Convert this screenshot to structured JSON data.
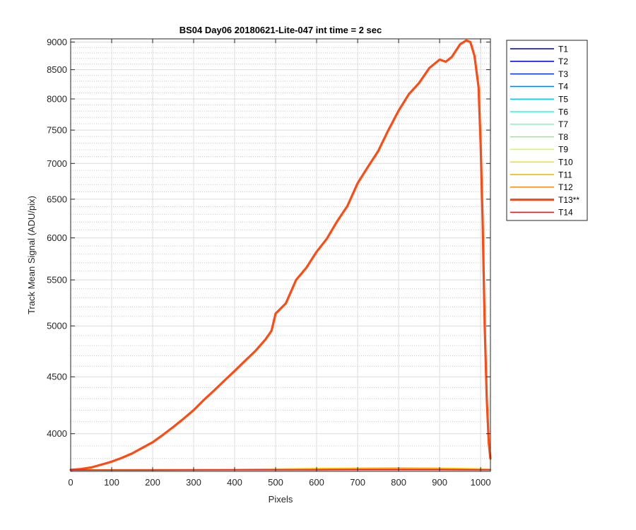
{
  "chart_data": {
    "type": "line",
    "title": "BS04 Day06 20180621-Lite-047 int time = 2 sec",
    "xlabel": "Pixels",
    "ylabel": "Track Mean Signal (ADU/pix)",
    "xlim": [
      0,
      1024
    ],
    "ylim": [
      3700,
      9060
    ],
    "y_scale": "log",
    "grid": true,
    "minor_grid": true,
    "legend_position": "outside-top-right",
    "x_ticks": [
      0,
      100,
      200,
      300,
      400,
      500,
      600,
      700,
      800,
      900,
      1000
    ],
    "x_tick_labels": [
      "0",
      "100",
      "200",
      "300",
      "400",
      "500",
      "600",
      "700",
      "800",
      "900",
      "1000"
    ],
    "y_ticks": [
      4000,
      4500,
      5000,
      5500,
      6000,
      6500,
      7000,
      7500,
      8000,
      8500,
      9000
    ],
    "y_tick_labels": [
      "4000",
      "4500",
      "5000",
      "5500",
      "6000",
      "6500",
      "7000",
      "7500",
      "8000",
      "8500",
      "9000"
    ],
    "y_minor_ticks": [
      3800,
      3900,
      4100,
      4200,
      4300,
      4400,
      4600,
      4700,
      4800,
      4900,
      5100,
      5200,
      5300,
      5400,
      5600,
      5700,
      5800,
      5900,
      6100,
      6200,
      6300,
      6400,
      6600,
      6700,
      6800,
      6900,
      7100,
      7200,
      7300,
      7400,
      7600,
      7700,
      7800,
      7900,
      8100,
      8200,
      8300,
      8400,
      8600,
      8700,
      8800,
      8900
    ],
    "series": [
      {
        "name": "T1",
        "color": "#00008f",
        "width": 1.5,
        "x": [
          0,
          1024
        ],
        "y": [
          3712,
          3712
        ]
      },
      {
        "name": "T2",
        "color": "#0000df",
        "width": 1.5,
        "x": [
          0,
          1024
        ],
        "y": [
          3712,
          3712
        ]
      },
      {
        "name": "T3",
        "color": "#0030ff",
        "width": 1.5,
        "x": [
          0,
          1024
        ],
        "y": [
          3712,
          3712
        ]
      },
      {
        "name": "T4",
        "color": "#0080ff",
        "width": 1.5,
        "x": [
          0,
          1024
        ],
        "y": [
          3712,
          3712
        ]
      },
      {
        "name": "T5",
        "color": "#00cfff",
        "width": 1.5,
        "x": [
          0,
          1024
        ],
        "y": [
          3712,
          3712
        ]
      },
      {
        "name": "T6",
        "color": "#20ffdf",
        "width": 1.5,
        "x": [
          0,
          1024
        ],
        "y": [
          3712,
          3712
        ]
      },
      {
        "name": "T7",
        "color": "#70ffaf",
        "width": 1.5,
        "x": [
          0,
          1024
        ],
        "y": [
          3712,
          3712
        ]
      },
      {
        "name": "T8",
        "color": "#8fef80",
        "width": 1.5,
        "x": [
          0,
          1024
        ],
        "y": [
          3712,
          3712
        ]
      },
      {
        "name": "T9",
        "color": "#cfff30",
        "width": 1.5,
        "x": [
          0,
          1024
        ],
        "y": [
          3712,
          3712
        ]
      },
      {
        "name": "T10",
        "color": "#f2e600",
        "width": 1.5,
        "x": [
          0,
          200,
          400,
          600,
          700,
          800,
          900,
          1000,
          1024
        ],
        "y": [
          3712,
          3714,
          3716,
          3722,
          3725,
          3727,
          3725,
          3720,
          3718
        ]
      },
      {
        "name": "T11",
        "color": "#f0b400",
        "width": 1.5,
        "x": [
          0,
          200,
          400,
          600,
          700,
          800,
          900,
          1000,
          1024
        ],
        "y": [
          3712,
          3713,
          3715,
          3720,
          3723,
          3725,
          3723,
          3718,
          3716
        ]
      },
      {
        "name": "T12",
        "color": "#ff8a1a",
        "width": 1.5,
        "x": [
          0,
          200,
          400,
          600,
          700,
          800,
          900,
          1000,
          1024
        ],
        "y": [
          3711,
          3712,
          3713,
          3716,
          3718,
          3720,
          3718,
          3714,
          3713
        ]
      },
      {
        "name": "T13**",
        "color": "#ff4a12",
        "width": 3.2,
        "x": [
          0,
          25,
          50,
          75,
          100,
          125,
          150,
          175,
          200,
          225,
          250,
          275,
          300,
          325,
          350,
          375,
          400,
          425,
          450,
          475,
          490,
          500,
          525,
          550,
          575,
          600,
          625,
          650,
          675,
          700,
          725,
          750,
          775,
          800,
          825,
          850,
          875,
          900,
          915,
          930,
          950,
          965,
          975,
          985,
          995,
          1000,
          1005,
          1010,
          1015,
          1020,
          1024
        ],
        "y": [
          3712,
          3718,
          3730,
          3752,
          3775,
          3805,
          3840,
          3885,
          3930,
          3990,
          4055,
          4125,
          4200,
          4290,
          4375,
          4465,
          4555,
          4650,
          4745,
          4860,
          4950,
          5130,
          5240,
          5500,
          5640,
          5830,
          5990,
          6210,
          6410,
          6720,
          6950,
          7180,
          7500,
          7810,
          8080,
          8270,
          8530,
          8680,
          8640,
          8730,
          8960,
          9030,
          9000,
          8750,
          8200,
          7300,
          6200,
          5000,
          4300,
          3920,
          3800
        ]
      },
      {
        "name": "T14",
        "color": "#e8181a",
        "width": 1.5,
        "x": [
          0,
          200,
          400,
          600,
          700,
          800,
          900,
          1000,
          1024
        ],
        "y": [
          3710,
          3710,
          3711,
          3711,
          3712,
          3712,
          3712,
          3711,
          3711
        ]
      }
    ]
  }
}
